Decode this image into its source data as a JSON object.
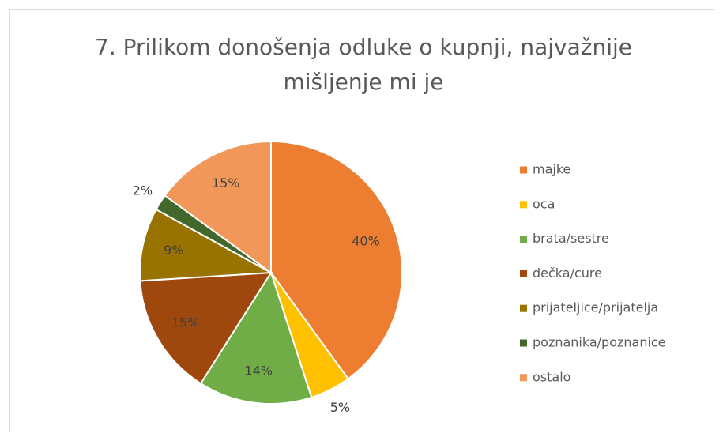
{
  "chart_data": {
    "type": "pie",
    "title": "7. Prilikom donošenja odluke o kupnji, najvažnije mišljenje mi je",
    "categories": [
      "majke",
      "oca",
      "brata/sestre",
      "dečka/cure",
      "prijateljice/prijatelja",
      "poznanika/poznanice",
      "ostalo"
    ],
    "values": [
      40,
      5,
      14,
      15,
      9,
      2,
      15
    ],
    "value_labels": [
      "40%",
      "5%",
      "14%",
      "15%",
      "9%",
      "2%",
      "15%"
    ],
    "colors": [
      "#ED7D31",
      "#FFC000",
      "#70AD47",
      "#9E480E",
      "#997300",
      "#43682B",
      "#F1975A"
    ],
    "legend": "right"
  }
}
